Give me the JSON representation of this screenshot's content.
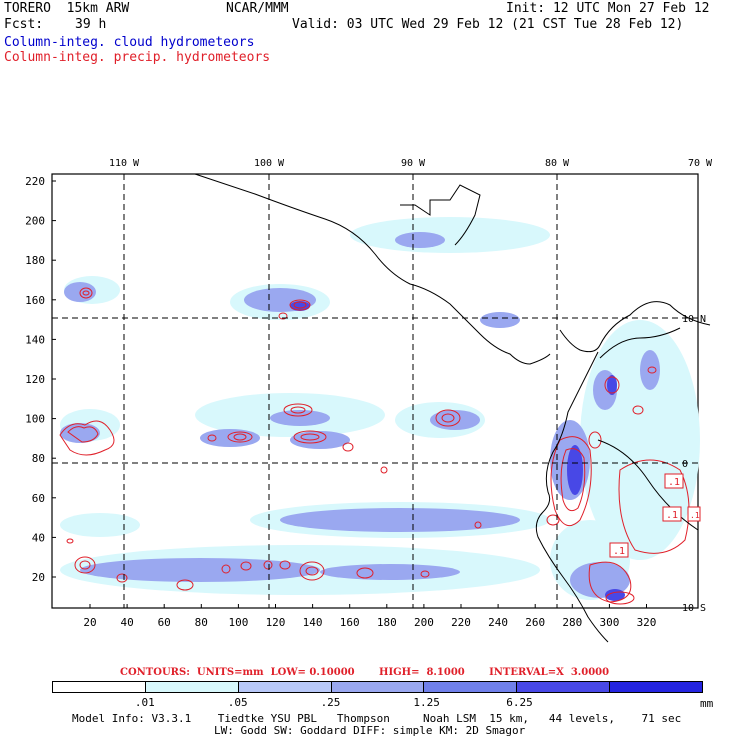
{
  "header": {
    "model": "TORERO  15km ARW",
    "org": "NCAR/MMM",
    "init": "Init: 12 UTC Mon 27 Feb 12",
    "fcst_label": "Fcst:",
    "fcst_value": "39 h",
    "valid": "Valid: 03 UTC Wed 29 Feb 12 (21 CST Tue 28 Feb 12)",
    "legend_cloud": "Column-integ. cloud hydrometeors",
    "legend_precip": "Column-integ. precip. hydrometeors"
  },
  "map": {
    "top_lon_labels": [
      "110 W",
      "100 W",
      "90 W",
      "80 W",
      "70 W"
    ],
    "right_lat_labels": [
      "10 N",
      "0",
      "10 S"
    ],
    "y_ticks": [
      "220",
      "200",
      "180",
      "160",
      "140",
      "120",
      "100",
      "80",
      "60",
      "40",
      "20"
    ],
    "x_ticks": [
      "20",
      "40",
      "60",
      "80",
      "100",
      "120",
      "140",
      "160",
      "180",
      "200",
      "220",
      "240",
      "260",
      "280",
      "300",
      "320"
    ],
    "high_labels": [
      ".1",
      ".1",
      ".1",
      ".1"
    ]
  },
  "contours_line": "CONTOURS:  UNITS=mm  LOW= 0.10000       HIGH=  8.1000       INTERVAL=X  3.0000",
  "colorbar": {
    "colors": [
      "#ffffff",
      "#d8f8fc",
      "#b8c8f8",
      "#9aa8f0",
      "#7080ea",
      "#4848e6",
      "#2424e0"
    ],
    "labels": [
      ".01",
      ".05",
      ".25",
      "1.25",
      "6.25"
    ],
    "units": "mm"
  },
  "footer": {
    "line1": "Model Info: V3.3.1    Tiedtke YSU PBL   Thompson     Noah LSM  15 km,   44 levels,    71 sec",
    "line2": "LW: Godd SW: Goddard DIFF: simple KM: 2D Smagor"
  }
}
